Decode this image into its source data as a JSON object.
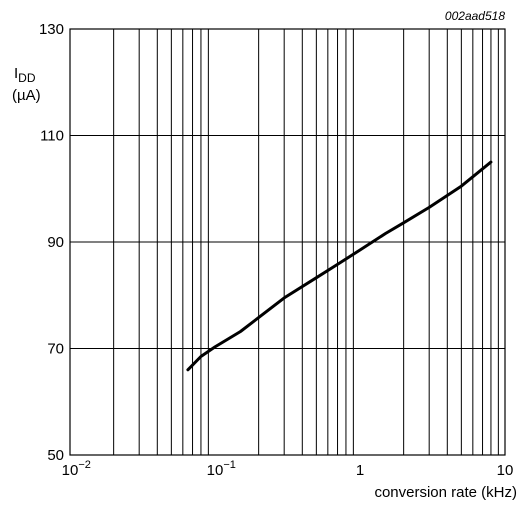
{
  "chart_data": {
    "type": "line",
    "figure_code": "002aad518",
    "xscale": "log",
    "xlim": [
      0.01,
      10
    ],
    "ylim": [
      50,
      130
    ],
    "x_ticks": [
      {
        "value": 0.01,
        "base": "10",
        "exp": "−2"
      },
      {
        "value": 0.1,
        "base": "10",
        "exp": "−1"
      },
      {
        "value": 1,
        "base": "1",
        "exp": ""
      },
      {
        "value": 10,
        "base": "10",
        "exp": ""
      }
    ],
    "y_ticks": [
      50,
      70,
      90,
      110,
      130
    ],
    "xlabel": "conversion rate (kHz)",
    "ylabel": {
      "symbol": "I",
      "subscript": "DD",
      "unit": "(µA)"
    },
    "grid": true,
    "series": [
      {
        "x": [
          0.065,
          0.08,
          0.1,
          0.15,
          0.2,
          0.3,
          0.5,
          0.7,
          1,
          1.5,
          2,
          3,
          5,
          8
        ],
        "y": [
          66,
          68.5,
          70.3,
          73.2,
          75.8,
          79.5,
          83.3,
          85.8,
          88.5,
          91.6,
          93.6,
          96.5,
          100.5,
          105
        ]
      }
    ]
  }
}
